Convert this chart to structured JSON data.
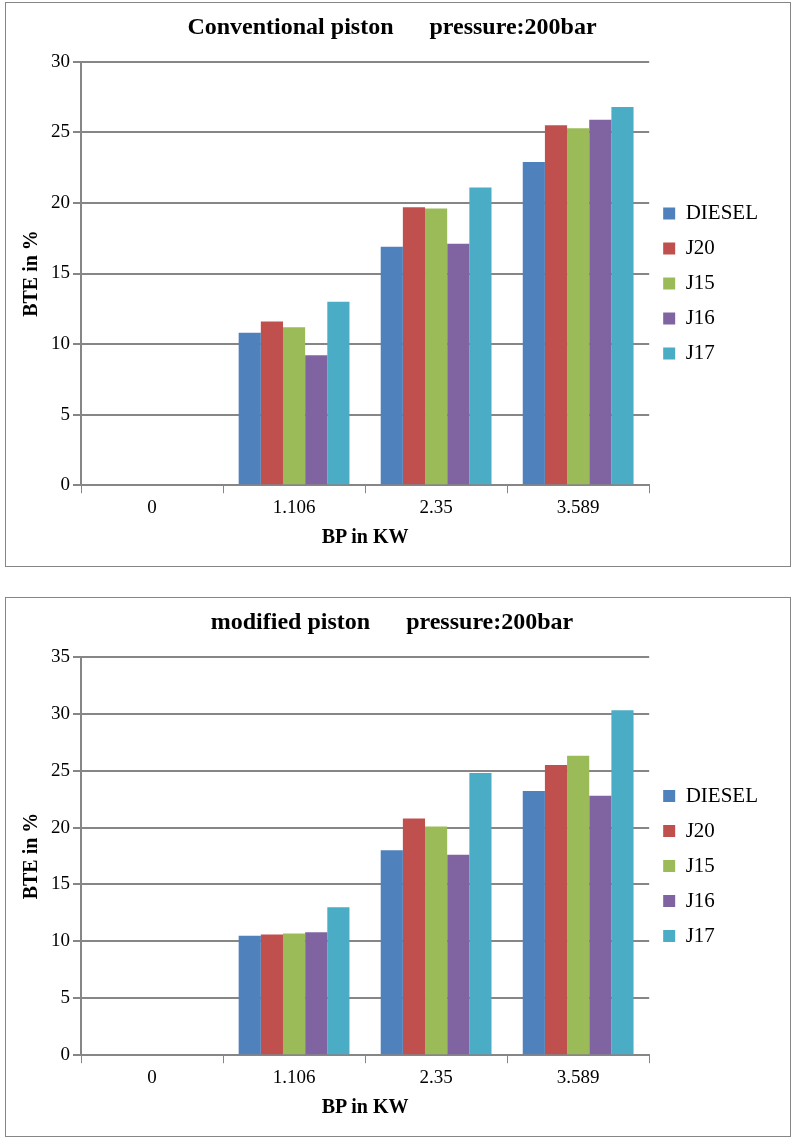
{
  "chart_data": [
    {
      "type": "bar",
      "title": "Conventional piston      pressure:200bar",
      "xlabel": "BP in KW",
      "ylabel": "BTE in %",
      "categories": [
        "0",
        "1.106",
        "2.35",
        "3.589"
      ],
      "series": [
        {
          "name": "DIESEL",
          "color": "#4f81bd",
          "values": [
            0,
            10.8,
            16.9,
            22.9
          ]
        },
        {
          "name": "J20",
          "color": "#c0504d",
          "values": [
            0,
            11.6,
            19.7,
            25.5
          ]
        },
        {
          "name": "J15",
          "color": "#9bbb59",
          "values": [
            0,
            11.2,
            19.6,
            25.3
          ]
        },
        {
          "name": "J16",
          "color": "#8064a2",
          "values": [
            0,
            9.2,
            17.1,
            25.9
          ]
        },
        {
          "name": "J17",
          "color": "#4bacc6",
          "values": [
            0,
            13.0,
            21.1,
            26.8
          ]
        }
      ],
      "ylim": [
        0,
        30
      ],
      "yticks": [
        0,
        5,
        10,
        15,
        20,
        25,
        30
      ],
      "grid": "y",
      "legend": "right"
    },
    {
      "type": "bar",
      "title": "modified piston      pressure:200bar",
      "xlabel": "BP in KW",
      "ylabel": "BTE in %",
      "categories": [
        "0",
        "1.106",
        "2.35",
        "3.589"
      ],
      "series": [
        {
          "name": "DIESEL",
          "color": "#4f81bd",
          "values": [
            0,
            10.5,
            18.0,
            23.2
          ]
        },
        {
          "name": "J20",
          "color": "#c0504d",
          "values": [
            0,
            10.6,
            20.8,
            25.5
          ]
        },
        {
          "name": "J15",
          "color": "#9bbb59",
          "values": [
            0,
            10.7,
            20.1,
            26.3
          ]
        },
        {
          "name": "J16",
          "color": "#8064a2",
          "values": [
            0,
            10.8,
            17.6,
            22.8
          ]
        },
        {
          "name": "J17",
          "color": "#4bacc6",
          "values": [
            0,
            13.0,
            24.8,
            30.3
          ]
        }
      ],
      "ylim": [
        0,
        35
      ],
      "yticks": [
        0,
        5,
        10,
        15,
        20,
        25,
        30,
        35
      ],
      "grid": "y",
      "legend": "right"
    }
  ]
}
